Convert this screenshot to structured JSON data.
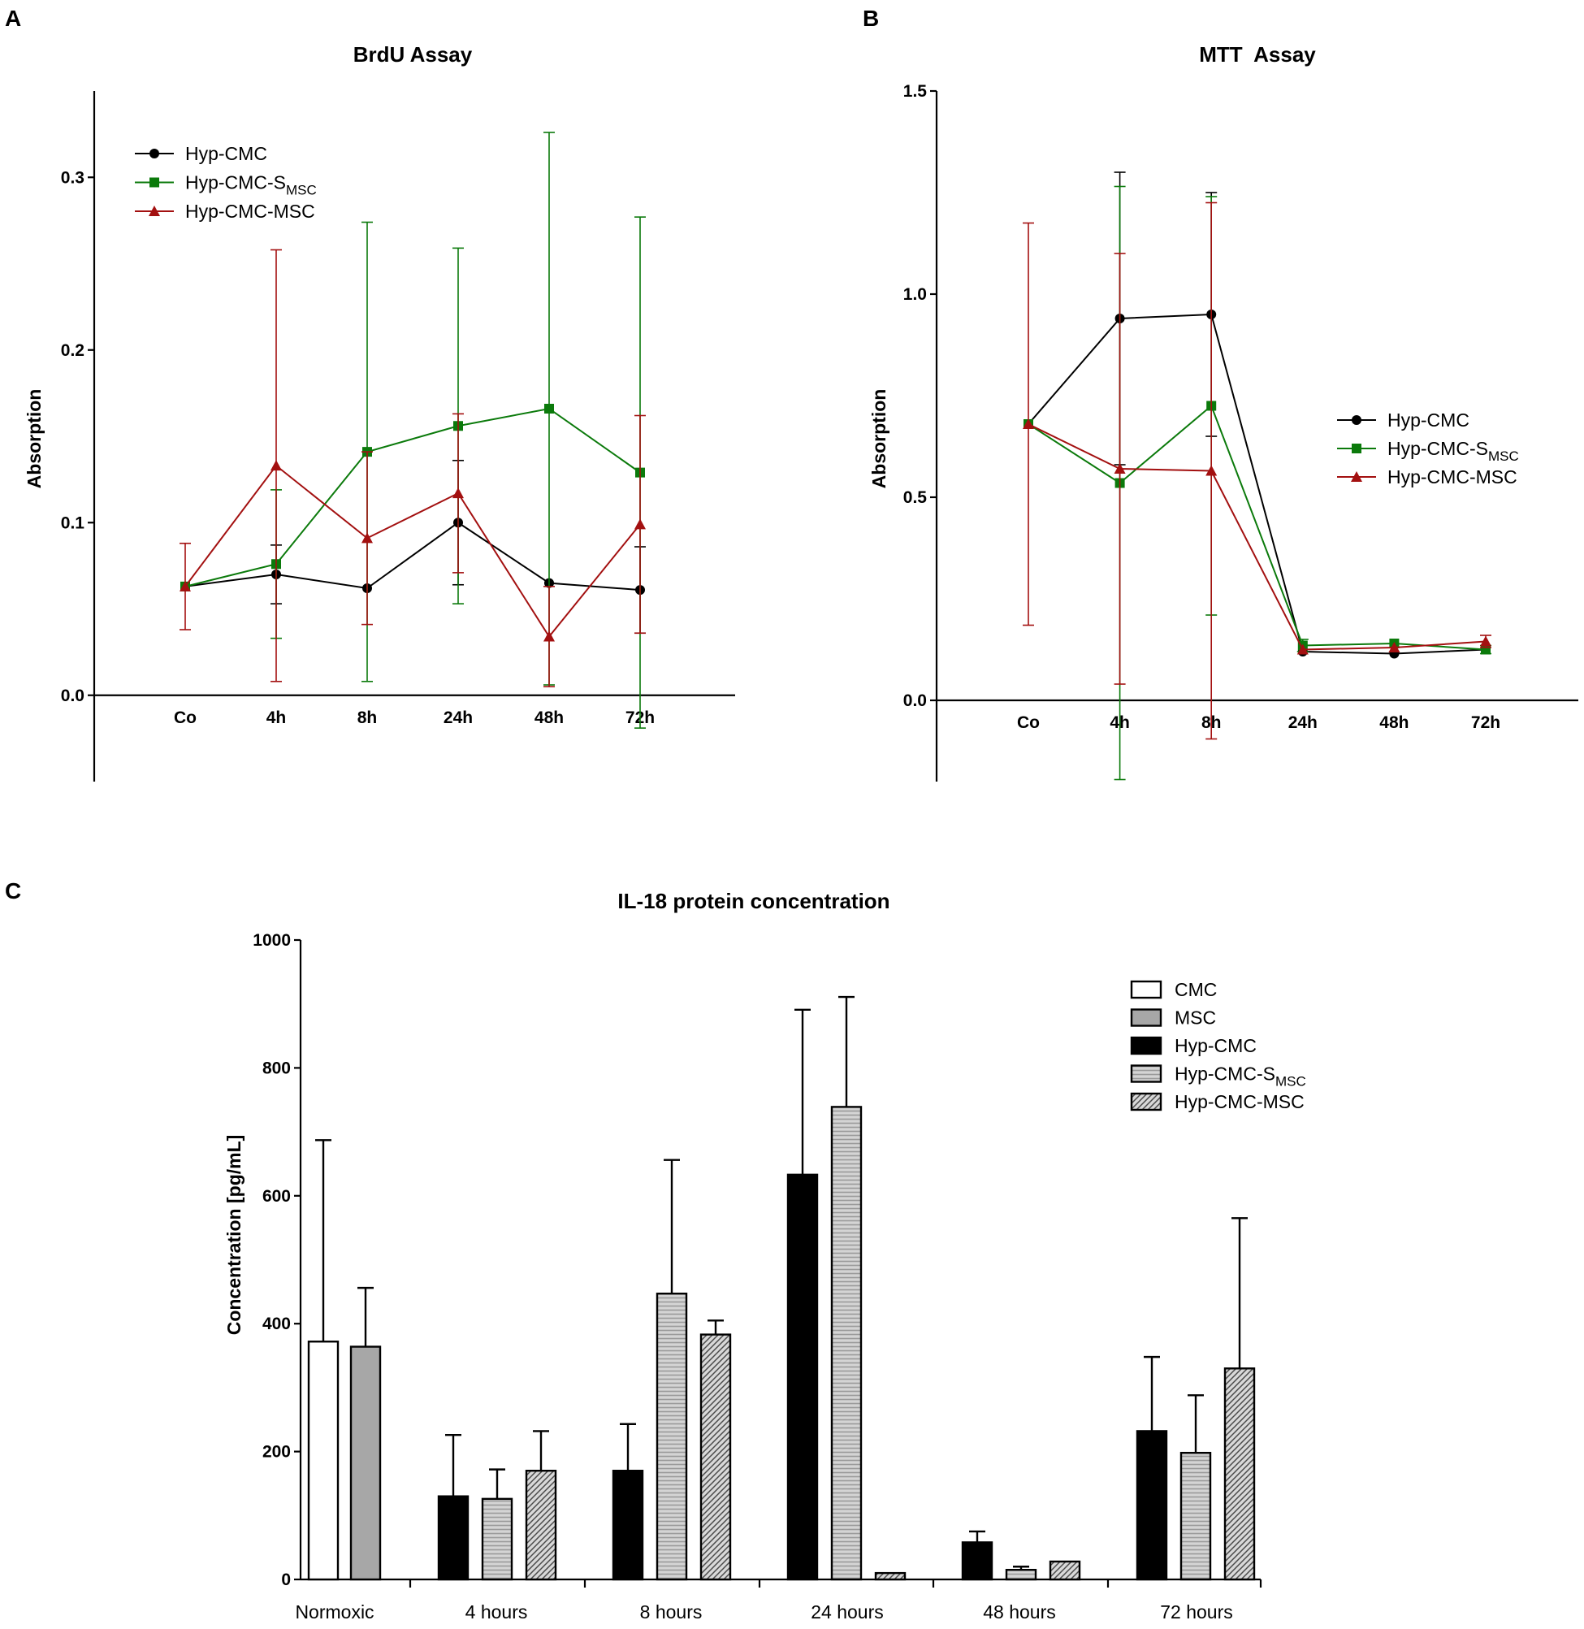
{
  "panels": {
    "A": {
      "letter": "A"
    },
    "B": {
      "letter": "B"
    },
    "C": {
      "letter": "C"
    }
  },
  "colors": {
    "hyp_cmc": "#000000",
    "hyp_cmc_smsc": "#0b7a0b",
    "hyp_cmc_msc": "#a31010"
  },
  "chart_data": [
    {
      "type": "line",
      "panel": "A",
      "title": "BrdU Assay",
      "xlabel": "",
      "ylabel": "Absorption",
      "categories": [
        "Co",
        "4h",
        "8h",
        "24h",
        "48h",
        "72h"
      ],
      "ylim": [
        -0.05,
        0.35
      ],
      "yticks": [
        0.0,
        0.1,
        0.2,
        0.3
      ],
      "ytick_labels": [
        "0.0",
        "0.1",
        "0.2",
        "0.3"
      ],
      "legend_position": "top-left",
      "series": [
        {
          "name": "Hyp-CMC",
          "name_main": "Hyp-CMC",
          "name_sub": "",
          "marker": "circle",
          "color": "#000000",
          "values": [
            0.063,
            0.07,
            0.062,
            0.1,
            0.065,
            0.061
          ],
          "err": [
            0.0,
            0.017,
            0.0,
            0.036,
            0.0,
            0.025
          ]
        },
        {
          "name": "Hyp-CMC-SMSC",
          "name_main": "Hyp-CMC-S",
          "name_sub": "MSC",
          "marker": "square",
          "color": "#0b7a0b",
          "values": [
            0.063,
            0.076,
            0.141,
            0.156,
            0.166,
            0.129
          ],
          "err": [
            0.0,
            0.043,
            0.133,
            0.103,
            0.16,
            0.148
          ]
        },
        {
          "name": "Hyp-CMC-MSC",
          "name_main": "Hyp-CMC-MSC",
          "name_sub": "",
          "marker": "triangle",
          "color": "#a31010",
          "values": [
            0.063,
            0.133,
            0.091,
            0.117,
            0.034,
            0.099
          ],
          "err": [
            0.025,
            0.125,
            0.05,
            0.046,
            0.029,
            0.063
          ]
        }
      ]
    },
    {
      "type": "line",
      "panel": "B",
      "title": "MTT  Assay",
      "xlabel": "",
      "ylabel": "Absorption",
      "categories": [
        "Co",
        "4h",
        "8h",
        "24h",
        "48h",
        "72h"
      ],
      "ylim": [
        -0.2,
        1.5
      ],
      "yticks": [
        0.0,
        0.5,
        1.0,
        1.5
      ],
      "ytick_labels": [
        "0.0",
        "0.5",
        "1.0",
        "1.5"
      ],
      "legend_position": "right",
      "series": [
        {
          "name": "Hyp-CMC",
          "name_main": "Hyp-CMC",
          "name_sub": "",
          "marker": "circle",
          "color": "#000000",
          "values": [
            0.68,
            0.94,
            0.95,
            0.12,
            0.115,
            0.125
          ],
          "err": [
            0.0,
            0.36,
            0.3,
            0.0,
            0.0,
            0.0
          ]
        },
        {
          "name": "Hyp-CMC-SMSC",
          "name_main": "Hyp-CMC-S",
          "name_sub": "MSC",
          "marker": "square",
          "color": "#0b7a0b",
          "values": [
            0.68,
            0.535,
            0.725,
            0.135,
            0.14,
            0.125
          ],
          "err": [
            0.0,
            0.73,
            0.515,
            0.015,
            0.0,
            0.01
          ]
        },
        {
          "name": "Hyp-CMC-MSC",
          "name_main": "Hyp-CMC-MSC",
          "name_sub": "",
          "marker": "triangle",
          "color": "#a31010",
          "values": [
            0.68,
            0.57,
            0.565,
            0.125,
            0.13,
            0.145
          ],
          "err": [
            0.495,
            0.53,
            0.66,
            0.0,
            0.0,
            0.015
          ]
        }
      ]
    },
    {
      "type": "bar",
      "panel": "C",
      "title": "IL-18 protein concentration",
      "xlabel": "",
      "ylabel": "Concentration [pg/mL]",
      "categories": [
        "Normoxic",
        "4 hours",
        "8 hours",
        "24 hours",
        "48 hours",
        "72 hours"
      ],
      "ylim": [
        0,
        1000
      ],
      "yticks": [
        0,
        200,
        400,
        600,
        800,
        1000
      ],
      "ytick_labels": [
        "0",
        "200",
        "400",
        "600",
        "800",
        "1000"
      ],
      "legend_position": "top-right",
      "series": [
        {
          "name": "CMC",
          "name_main": "CMC",
          "name_sub": "",
          "fill": "white",
          "values": [
            372,
            null,
            null,
            null,
            null,
            null
          ],
          "err": [
            315,
            null,
            null,
            null,
            null,
            null
          ]
        },
        {
          "name": "MSC",
          "name_main": "MSC",
          "name_sub": "",
          "fill": "gray",
          "values": [
            364,
            null,
            null,
            null,
            null,
            null
          ],
          "err": [
            92,
            null,
            null,
            null,
            null,
            null
          ]
        },
        {
          "name": "Hyp-CMC",
          "name_main": "Hyp-CMC",
          "name_sub": "",
          "fill": "black",
          "values": [
            null,
            130,
            170,
            633,
            58,
            232
          ],
          "err": [
            null,
            96,
            73,
            258,
            17,
            116
          ]
        },
        {
          "name": "Hyp-CMC-SMSC",
          "name_main": "Hyp-CMC-S",
          "name_sub": "MSC",
          "fill": "hlines",
          "values": [
            null,
            126,
            447,
            739,
            15,
            198
          ],
          "err": [
            null,
            46,
            209,
            172,
            5,
            90
          ]
        },
        {
          "name": "Hyp-CMC-MSC",
          "name_main": "Hyp-CMC-MSC",
          "name_sub": "",
          "fill": "diag",
          "values": [
            null,
            170,
            383,
            10,
            28,
            330
          ],
          "err": [
            null,
            62,
            22,
            0,
            0,
            235
          ]
        }
      ]
    }
  ]
}
